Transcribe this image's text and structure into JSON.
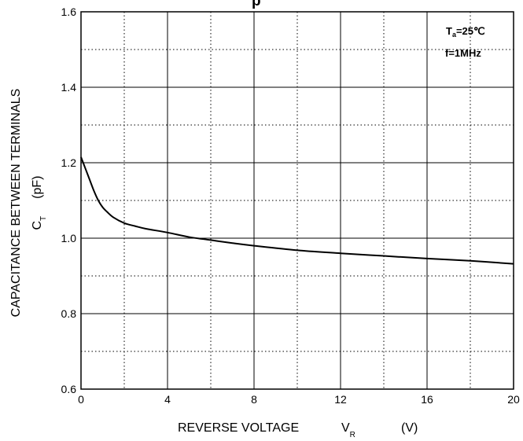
{
  "chart_data": {
    "type": "line",
    "title": "",
    "title_fragment": "p",
    "xlabel": {
      "main": "REVERSE VOLTAGE",
      "symbol": "V",
      "subscript": "R",
      "unit": "(V)"
    },
    "ylabel": {
      "main": "CAPACITANCE BETWEEN TERMINALS",
      "symbol": "C",
      "subscript": "T",
      "unit": "(pF)"
    },
    "xlim": [
      0,
      20
    ],
    "ylim": [
      0.6,
      1.6
    ],
    "x_ticks": [
      "0",
      "4",
      "8",
      "12",
      "16",
      "20"
    ],
    "y_ticks": [
      "0.6",
      "0.8",
      "1.0",
      "1.2",
      "1.4",
      "1.6"
    ],
    "grid": {
      "major": "solid",
      "minor": "dotted"
    },
    "legend": {
      "placement": "top-right",
      "condition1_main": "T",
      "condition1_sub": "a",
      "condition1_rest": "=25℃",
      "condition2": "f=1MHz"
    },
    "series": [
      {
        "x": [
          0,
          0.2,
          0.4,
          0.6,
          0.8,
          1.0,
          1.2,
          1.5,
          2.0,
          2.5,
          3,
          4,
          5,
          6,
          7,
          8,
          10,
          12,
          14,
          16,
          18,
          20
        ],
        "y": [
          1.215,
          1.185,
          1.155,
          1.125,
          1.1,
          1.082,
          1.07,
          1.055,
          1.04,
          1.032,
          1.025,
          1.015,
          1.003,
          0.995,
          0.987,
          0.98,
          0.968,
          0.96,
          0.953,
          0.946,
          0.94,
          0.932
        ]
      }
    ]
  }
}
